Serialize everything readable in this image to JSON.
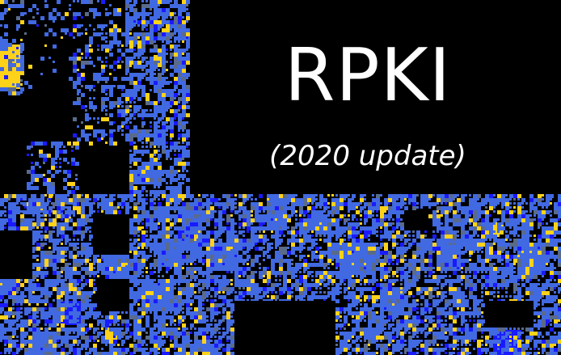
{
  "title": "RPKI",
  "subtitle": "(2020 update)",
  "colors": {
    "background": "#000000",
    "blue": "#4169e1",
    "deep_blue": "#1a1aff",
    "slate": "#5a6a8a",
    "yellow": "#ffd21a",
    "text": "#ffffff"
  },
  "mosaic_icon": "address-space-hilbert-map"
}
